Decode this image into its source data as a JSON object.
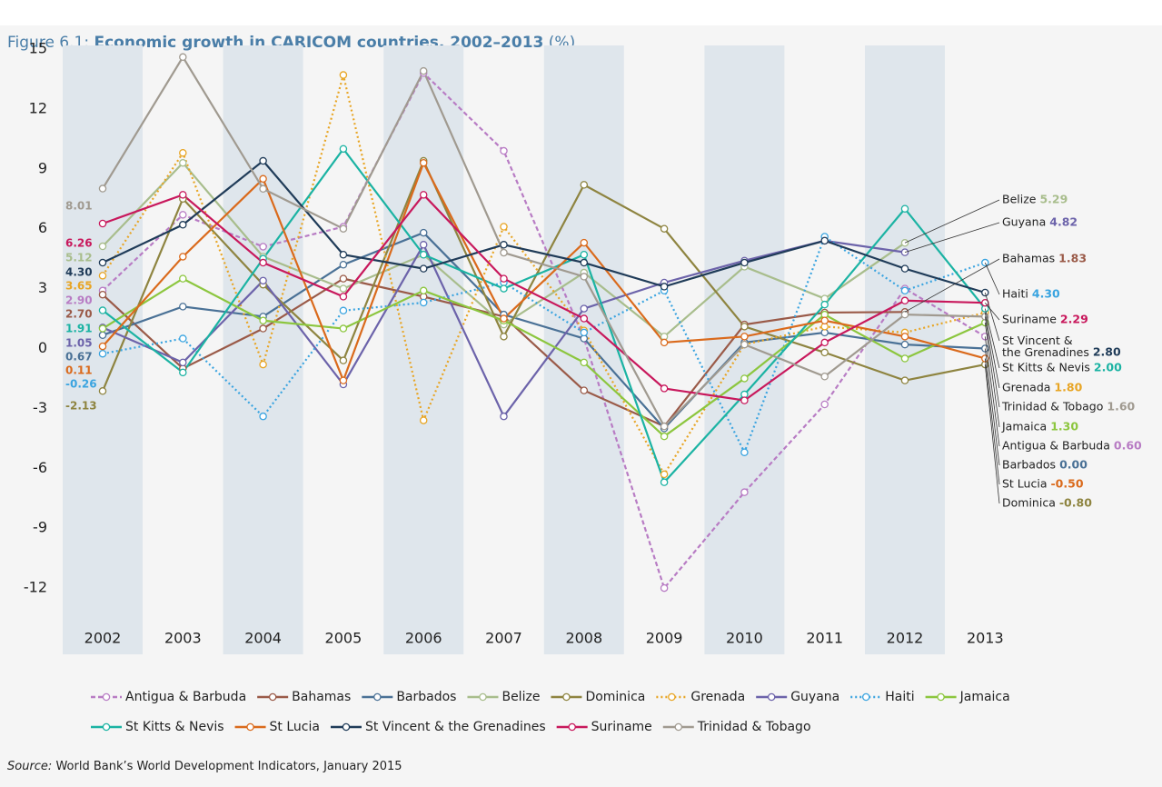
{
  "chart_data": {
    "type": "line",
    "title_label": "Figure 6.1:",
    "title": "Economic growth in CARICOM countries, 2002–2013",
    "title_unit": "(%)",
    "source_label": "Source:",
    "source": "World Bank’s World Development Indicators, January 2015",
    "categories": [
      "2002",
      "2003",
      "2004",
      "2005",
      "2006",
      "2007",
      "2008",
      "2009",
      "2010",
      "2011",
      "2012",
      "2013"
    ],
    "ylim": [
      -15,
      15
    ],
    "yticks": [
      15,
      12,
      9,
      6,
      3,
      0,
      -3,
      -6,
      -9,
      -12
    ],
    "shaded_columns": true,
    "series": [
      {
        "name": "Antigua & Barbuda",
        "color": "#b87cc4",
        "style": "dashed",
        "values": [
          2.9,
          6.7,
          5.1,
          6.1,
          13.8,
          9.9,
          0.5,
          -12.0,
          -7.2,
          -2.8,
          3.0,
          0.6
        ],
        "value_labels": [
          "2.90",
          null,
          null,
          null,
          null,
          null,
          null,
          null,
          null,
          null,
          null,
          "0.60"
        ]
      },
      {
        "name": "Bahamas",
        "color": "#9a5a48",
        "style": "solid",
        "values": [
          2.7,
          -1.0,
          1.0,
          3.5,
          2.6,
          1.6,
          -2.1,
          -3.9,
          1.2,
          1.8,
          1.83,
          null
        ],
        "value_labels": [
          "2.70",
          null,
          null,
          null,
          null,
          null,
          null,
          null,
          null,
          null,
          "1.83",
          null
        ]
      },
      {
        "name": "Barbados",
        "color": "#4a7196",
        "style": "solid",
        "values": [
          0.67,
          2.1,
          1.6,
          4.2,
          5.8,
          1.7,
          0.5,
          -4.0,
          0.3,
          0.8,
          0.2,
          0
        ],
        "value_labels": [
          "0.67",
          null,
          null,
          null,
          null,
          null,
          null,
          null,
          null,
          null,
          null,
          "0.00"
        ]
      },
      {
        "name": "Belize",
        "color": "#a8bd8c",
        "style": "solid",
        "values": [
          5.12,
          9.3,
          4.6,
          3.0,
          4.7,
          1.2,
          3.8,
          0.6,
          4.1,
          2.5,
          5.29,
          null
        ],
        "value_labels": [
          "5.12",
          null,
          null,
          null,
          null,
          null,
          null,
          null,
          null,
          null,
          "5.29",
          null
        ]
      },
      {
        "name": "Dominica",
        "color": "#8e8440",
        "style": "solid",
        "values": [
          -2.13,
          7.5,
          3.2,
          -0.6,
          9.4,
          0.6,
          8.2,
          6.0,
          1.1,
          -0.2,
          -1.6,
          -0.8
        ],
        "value_labels": [
          "-2.13",
          null,
          null,
          null,
          null,
          null,
          null,
          null,
          null,
          null,
          null,
          "-0.80"
        ]
      },
      {
        "name": "Grenada",
        "color": "#e8a524",
        "style": "dotted",
        "values": [
          3.65,
          9.8,
          -0.8,
          13.7,
          -3.6,
          6.1,
          0.9,
          -6.3,
          0.2,
          1.1,
          0.8,
          1.8
        ],
        "value_labels": [
          "3.65",
          null,
          null,
          null,
          null,
          null,
          null,
          null,
          null,
          null,
          null,
          "1.80"
        ]
      },
      {
        "name": "Guyana",
        "color": "#6c63aa",
        "style": "solid",
        "values": [
          1.05,
          -0.7,
          3.4,
          -1.8,
          5.2,
          -3.4,
          2.0,
          3.3,
          4.4,
          5.4,
          4.82,
          null
        ],
        "value_labels": [
          "1.05",
          null,
          null,
          null,
          null,
          null,
          null,
          null,
          null,
          null,
          "4.82",
          null
        ]
      },
      {
        "name": "Haiti",
        "color": "#3aa4e0",
        "style": "dotted",
        "values": [
          -0.26,
          0.5,
          -3.4,
          1.9,
          2.3,
          3.3,
          0.8,
          2.9,
          -5.2,
          5.6,
          2.9,
          4.3
        ],
        "value_labels": [
          "-0.26",
          null,
          null,
          null,
          null,
          null,
          null,
          null,
          null,
          null,
          null,
          "4.30"
        ]
      },
      {
        "name": "Jamaica",
        "color": "#8cc63e",
        "style": "solid",
        "values": [
          1.0,
          3.5,
          1.4,
          1.0,
          2.9,
          1.4,
          -0.7,
          -4.4,
          -1.5,
          1.7,
          -0.5,
          1.3
        ],
        "value_labels": [
          null,
          null,
          null,
          null,
          null,
          null,
          null,
          null,
          null,
          null,
          null,
          "1.30"
        ]
      },
      {
        "name": "St Kitts & Nevis",
        "color": "#1bb3a3",
        "style": "solid",
        "values": [
          1.91,
          -1.2,
          4.5,
          10.0,
          4.7,
          3.0,
          4.7,
          -6.7,
          -2.3,
          2.2,
          7.0,
          2.0
        ],
        "value_labels": [
          "1.91",
          null,
          null,
          null,
          null,
          null,
          null,
          null,
          null,
          null,
          null,
          "2.00"
        ]
      },
      {
        "name": "St Lucia",
        "color": "#da6a1c",
        "style": "solid",
        "values": [
          0.11,
          4.6,
          8.5,
          -1.6,
          9.3,
          1.5,
          5.3,
          0.3,
          0.6,
          1.4,
          0.6,
          -0.5
        ],
        "value_labels": [
          "0.11",
          null,
          null,
          null,
          null,
          null,
          null,
          null,
          null,
          null,
          null,
          "-0.50"
        ]
      },
      {
        "name": "St Vincent & the Grenadines",
        "color": "#1f3b58",
        "style": "solid",
        "values": [
          4.3,
          6.2,
          9.4,
          4.7,
          4.0,
          5.2,
          4.3,
          3.1,
          4.3,
          5.4,
          4.0,
          2.8
        ],
        "value_labels": [
          "4.30",
          null,
          null,
          null,
          null,
          null,
          null,
          null,
          null,
          null,
          null,
          "2.80"
        ]
      },
      {
        "name": "Suriname",
        "color": "#c8185c",
        "style": "solid",
        "values": [
          6.26,
          7.7,
          4.3,
          2.6,
          7.7,
          3.5,
          1.5,
          -2.0,
          -2.6,
          0.3,
          2.4,
          2.29
        ],
        "value_labels": [
          "6.26",
          null,
          null,
          null,
          null,
          null,
          null,
          null,
          null,
          null,
          null,
          "2.29"
        ]
      },
      {
        "name": "Trinidad & Tobago",
        "color": "#a09a90",
        "style": "solid",
        "values": [
          8.01,
          14.6,
          8.0,
          6.0,
          13.9,
          4.8,
          3.6,
          -3.9,
          0.2,
          -1.4,
          1.7,
          1.6
        ],
        "value_labels": [
          "8.01",
          null,
          null,
          null,
          null,
          null,
          null,
          null,
          null,
          null,
          null,
          "1.60"
        ]
      }
    ]
  }
}
